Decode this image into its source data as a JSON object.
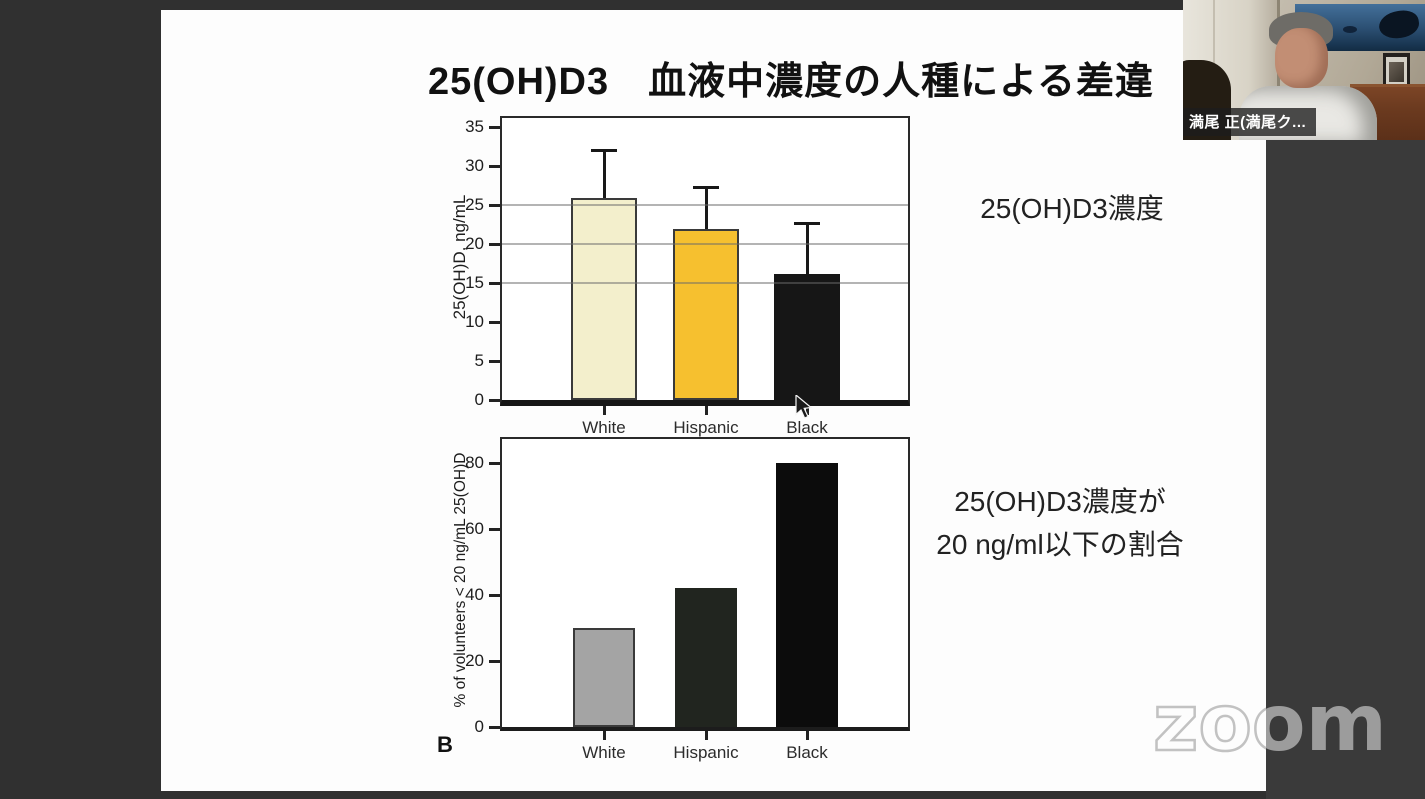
{
  "window": {
    "background_watermark": "zoom"
  },
  "slide": {
    "title": "25(OH)D3　血液中濃度の人種による差違",
    "panel_label": "B",
    "annotations": {
      "top": "25(OH)D3濃度",
      "bottom_line1": "25(OH)D3濃度が",
      "bottom_line2": "20 ng/ml以下の割合"
    }
  },
  "chart_data": [
    {
      "type": "bar",
      "position": "top",
      "title": "",
      "categories": [
        "White",
        "Hispanic",
        "Black"
      ],
      "values": [
        25.9,
        21.9,
        16.1
      ],
      "error_bar_tops": [
        32.0,
        27.3,
        22.7
      ],
      "ylabel": "25(OH)D, ng/mL",
      "yticks": [
        0,
        5,
        10,
        15,
        20,
        25,
        30,
        35
      ],
      "ylim": [
        0,
        36
      ],
      "gridlines": [
        15,
        20,
        25
      ],
      "bar_colors": [
        "#f3efcc",
        "#f6c02f",
        "#161616"
      ],
      "bar_border_colors": [
        "#3a3a3a",
        "#3a3a3a",
        "#161616"
      ],
      "legend": "none"
    },
    {
      "type": "bar",
      "position": "bottom",
      "title": "",
      "categories": [
        "White",
        "Hispanic",
        "Black"
      ],
      "values": [
        30,
        42,
        80
      ],
      "error_bar_tops": [],
      "ylabel": "% of volunteers < 20 ng/mL 25(OH)D",
      "yticks": [
        0,
        20,
        40,
        60,
        80
      ],
      "ylim": [
        0,
        87
      ],
      "gridlines": [],
      "bar_colors": [
        "#a4a4a4",
        "#21251f",
        "#0c0c0c"
      ],
      "bar_border_colors": [
        "#3a3a3a",
        "#21251f",
        "#0c0c0c"
      ],
      "legend": "none"
    }
  ],
  "webcam": {
    "participant_name": "満尾 正(満尾ク..."
  }
}
